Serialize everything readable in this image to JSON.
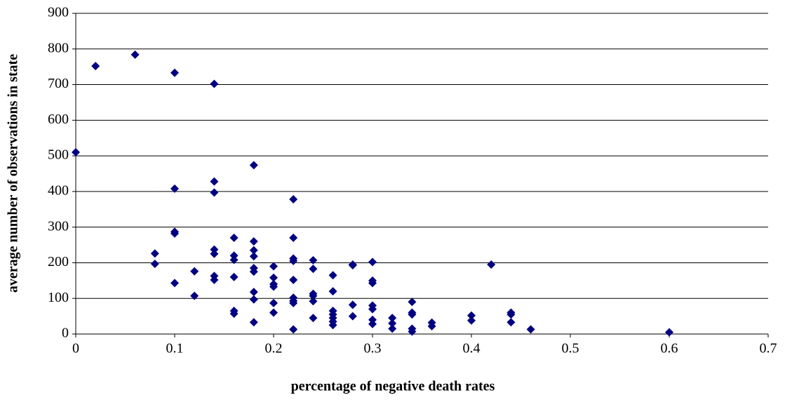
{
  "chart_data": {
    "type": "scatter",
    "x_label": "percentage of negative death rates",
    "y_label": "average number of observations in state",
    "color": "#000080",
    "grid": true,
    "xlim": [
      0,
      0.7
    ],
    "xticks": [
      0,
      0.1,
      0.2,
      0.3,
      0.4,
      0.5,
      0.6,
      0.7
    ],
    "ylim": [
      0,
      900
    ],
    "yticks": [
      0,
      100,
      200,
      300,
      400,
      500,
      600,
      700,
      800,
      900
    ],
    "x": [
      0,
      0.02,
      0.06,
      0.1,
      0.14,
      0.18,
      0.1,
      0.14,
      0.14,
      0.22,
      0.1,
      0.1,
      0.08,
      0.08,
      0.1,
      0.12,
      0.12,
      0.14,
      0.14,
      0.14,
      0.14,
      0.16,
      0.16,
      0.16,
      0.16,
      0.16,
      0.16,
      0.18,
      0.18,
      0.18,
      0.18,
      0.18,
      0.18,
      0.18,
      0.18,
      0.2,
      0.2,
      0.2,
      0.2,
      0.2,
      0.2,
      0.22,
      0.22,
      0.22,
      0.22,
      0.22,
      0.22,
      0.22,
      0.22,
      0.24,
      0.24,
      0.24,
      0.24,
      0.24,
      0.24,
      0.26,
      0.26,
      0.26,
      0.26,
      0.26,
      0.26,
      0.26,
      0.28,
      0.28,
      0.28,
      0.28,
      0.3,
      0.3,
      0.3,
      0.3,
      0.3,
      0.3,
      0.3,
      0.32,
      0.32,
      0.32,
      0.34,
      0.34,
      0.34,
      0.34,
      0.34,
      0.36,
      0.36,
      0.4,
      0.4,
      0.42,
      0.44,
      0.44,
      0.44,
      0.46,
      0.6
    ],
    "y": [
      510,
      752,
      784,
      733,
      702,
      474,
      408,
      428,
      397,
      378,
      287,
      282,
      226,
      197,
      143,
      176,
      107,
      237,
      225,
      163,
      152,
      270,
      220,
      208,
      160,
      65,
      57,
      260,
      235,
      218,
      185,
      175,
      118,
      97,
      33,
      190,
      158,
      140,
      133,
      87,
      60,
      270,
      212,
      205,
      152,
      102,
      93,
      87,
      13,
      207,
      183,
      113,
      107,
      92,
      45,
      165,
      120,
      65,
      55,
      45,
      35,
      25,
      195,
      193,
      82,
      50,
      202,
      150,
      143,
      80,
      70,
      40,
      28,
      45,
      30,
      15,
      90,
      60,
      55,
      15,
      7,
      32,
      22,
      52,
      38,
      195,
      60,
      55,
      33,
      13,
      5
    ]
  }
}
